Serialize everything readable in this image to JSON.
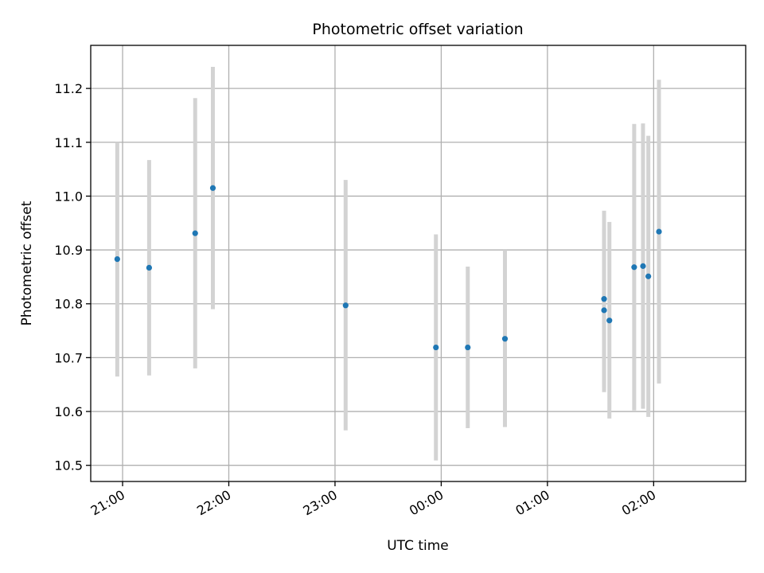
{
  "chart_data": {
    "type": "scatter",
    "title": "Photometric offset variation",
    "xlabel": "UTC time",
    "ylabel": "Photometric offset",
    "grid": true,
    "x_axis_type": "time",
    "xlim": [
      "20:42",
      "02:52"
    ],
    "ylim": [
      10.47,
      11.28
    ],
    "x_ticks": [
      "21:00",
      "22:00",
      "23:00",
      "00:00",
      "01:00",
      "02:00"
    ],
    "y_ticks": [
      "10.5",
      "10.6",
      "10.7",
      "10.8",
      "10.9",
      "11.0",
      "11.1",
      "11.2"
    ],
    "colors": {
      "point": "#1f77b4",
      "errorbar": "#d3d3d3",
      "grid": "#b0b0b0"
    },
    "points": [
      {
        "time": "20:57",
        "y": 10.883,
        "ylow": 10.665,
        "yhigh": 11.1
      },
      {
        "time": "21:15",
        "y": 10.867,
        "ylow": 10.667,
        "yhigh": 11.067
      },
      {
        "time": "21:41",
        "y": 10.931,
        "ylow": 10.68,
        "yhigh": 11.182
      },
      {
        "time": "21:51",
        "y": 11.015,
        "ylow": 10.79,
        "yhigh": 11.24
      },
      {
        "time": "23:06",
        "y": 10.797,
        "ylow": 10.565,
        "yhigh": 11.03
      },
      {
        "time": "23:57",
        "y": 10.719,
        "ylow": 10.509,
        "yhigh": 10.929
      },
      {
        "time": "00:15",
        "y": 10.719,
        "ylow": 10.569,
        "yhigh": 10.869
      },
      {
        "time": "00:36",
        "y": 10.735,
        "ylow": 10.571,
        "yhigh": 10.9
      },
      {
        "time": "01:32",
        "y": 10.809,
        "ylow": 10.645,
        "yhigh": 10.973
      },
      {
        "time": "01:32",
        "y": 10.788,
        "ylow": 10.636,
        "yhigh": 10.94
      },
      {
        "time": "01:35",
        "y": 10.769,
        "ylow": 10.587,
        "yhigh": 10.952
      },
      {
        "time": "01:49",
        "y": 10.868,
        "ylow": 10.602,
        "yhigh": 11.134
      },
      {
        "time": "01:54",
        "y": 10.87,
        "ylow": 10.605,
        "yhigh": 11.135
      },
      {
        "time": "01:57",
        "y": 10.851,
        "ylow": 10.59,
        "yhigh": 11.112
      },
      {
        "time": "02:03",
        "y": 10.934,
        "ylow": 10.652,
        "yhigh": 11.216
      }
    ]
  }
}
